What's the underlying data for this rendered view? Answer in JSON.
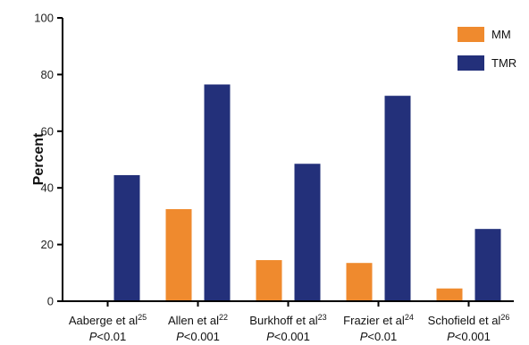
{
  "chart_data": {
    "type": "bar",
    "title": "",
    "ylabel": "Percent",
    "xlabel": "",
    "ylim": [
      0,
      100
    ],
    "yticks": [
      0,
      20,
      40,
      60,
      80,
      100
    ],
    "grid": false,
    "legend_position": "top-right",
    "categories": [
      {
        "name": "Aaberge et al",
        "ref": "25",
        "p_prefix": "P",
        "p_rest": "<0.01"
      },
      {
        "name": "Allen et al",
        "ref": "22",
        "p_prefix": "P",
        "p_rest": "<0.001"
      },
      {
        "name": "Burkhoff et al",
        "ref": "23",
        "p_prefix": "P",
        "p_rest": "<0.001"
      },
      {
        "name": "Frazier et al",
        "ref": "24",
        "p_prefix": "P",
        "p_rest": "<0.01"
      },
      {
        "name": "Schofield et al",
        "ref": "26",
        "p_prefix": "P",
        "p_rest": "<0.001"
      }
    ],
    "series": [
      {
        "name": "MM",
        "color": "#EF8A2E",
        "values": [
          0,
          32.5,
          14.5,
          13.5,
          4.5
        ]
      },
      {
        "name": "TMR",
        "color": "#23307A",
        "values": [
          44.5,
          76.5,
          48.5,
          72.5,
          25.5
        ]
      }
    ]
  }
}
